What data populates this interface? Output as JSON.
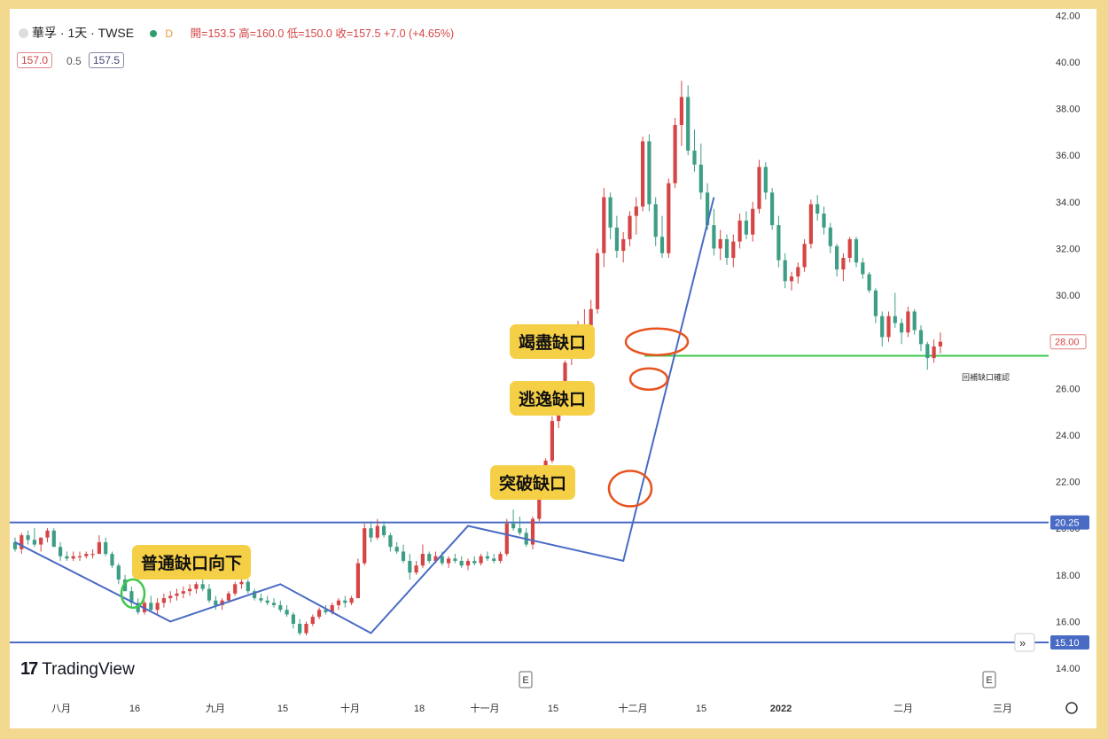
{
  "header": {
    "symbol": "華孚 · 1天 · TWSE",
    "interval_badge": "D",
    "ohlc_text": "開=153.5 高=160.0 低=150.0 收=157.5 +7.0 (+4.65%)",
    "bid": "157.0",
    "spread": "0.5",
    "ask": "157.5"
  },
  "branding": {
    "logo_text": "TradingView",
    "logo_mark": "17"
  },
  "annotations": [
    {
      "text": "普通缺口向下",
      "ring_color": "#3cc84a"
    },
    {
      "text": "突破缺口",
      "ring_color": "#e8531f"
    },
    {
      "text": "逃逸缺口",
      "ring_color": "#e8531f"
    },
    {
      "text": "竭盡缺口",
      "ring_color": "#e8531f"
    }
  ],
  "gap_fill_label": "回補缺口確認",
  "event_marker": "E",
  "scroll_icon": "double-chevron-right-icon",
  "colors": {
    "up": "#d64545",
    "down": "#3e9e85",
    "trend": "#4a6bc4",
    "support": "#4a6bc4",
    "gapline": "#3cc84a"
  },
  "chart_data": {
    "type": "candlestick",
    "x_tick_labels": [
      "八月",
      "16",
      "九月",
      "15",
      "十月",
      "18",
      "十一月",
      "15",
      "十二月",
      "15",
      "2022",
      "二月",
      "三月"
    ],
    "y_tick_labels": [
      "14.00",
      "16.00",
      "18.00",
      "20.00",
      "22.00",
      "24.00",
      "26.00",
      "28.00",
      "30.00",
      "32.00",
      "34.00",
      "36.00",
      "38.00",
      "40.00",
      "42.00"
    ],
    "ylim": [
      14,
      42
    ],
    "price_labels": [
      {
        "text": "28.00",
        "value": 28.0,
        "style": "last"
      },
      {
        "text": "20.25",
        "value": 20.25,
        "style": "level"
      },
      {
        "text": "15.10",
        "value": 15.1,
        "style": "level"
      }
    ],
    "horizontal_levels": [
      20.25,
      15.1,
      27.4
    ],
    "series": [
      {
        "values": [
          [
            19.4,
            19.6,
            19.0,
            19.1
          ],
          [
            19.1,
            19.8,
            18.9,
            19.7
          ],
          [
            19.7,
            19.9,
            19.3,
            19.5
          ],
          [
            19.5,
            20.0,
            19.2,
            19.3
          ],
          [
            19.3,
            19.6,
            19.0,
            19.6
          ],
          [
            19.6,
            20.0,
            19.4,
            19.9
          ],
          [
            19.9,
            20.0,
            19.5,
            19.2
          ],
          [
            19.2,
            19.4,
            18.6,
            18.8
          ],
          [
            18.8,
            19.0,
            18.6,
            18.7
          ],
          [
            18.7,
            19.0,
            18.6,
            18.8
          ],
          [
            18.8,
            19.0,
            18.6,
            18.8
          ],
          [
            18.8,
            19.0,
            18.7,
            18.9
          ],
          [
            18.9,
            19.1,
            18.7,
            18.9
          ],
          [
            18.9,
            19.7,
            18.9,
            19.4
          ],
          [
            19.4,
            19.6,
            18.8,
            18.9
          ],
          [
            18.9,
            19.0,
            18.3,
            18.4
          ],
          [
            18.4,
            18.5,
            17.6,
            17.8
          ],
          [
            17.8,
            18.0,
            17.3,
            17.3
          ],
          [
            17.3,
            17.5,
            16.6,
            16.8
          ],
          [
            16.8,
            17.0,
            16.3,
            16.4
          ],
          [
            16.4,
            16.9,
            16.3,
            16.8
          ],
          [
            16.8,
            17.1,
            16.4,
            16.5
          ],
          [
            16.5,
            17.0,
            16.3,
            16.8
          ],
          [
            16.8,
            17.2,
            16.6,
            17.0
          ],
          [
            17.0,
            17.3,
            16.8,
            17.1
          ],
          [
            17.1,
            17.4,
            16.9,
            17.2
          ],
          [
            17.2,
            17.5,
            17.0,
            17.3
          ],
          [
            17.3,
            17.6,
            17.1,
            17.4
          ],
          [
            17.4,
            17.7,
            17.2,
            17.6
          ],
          [
            17.6,
            17.9,
            17.3,
            17.4
          ],
          [
            17.4,
            17.6,
            16.8,
            16.9
          ],
          [
            16.9,
            17.1,
            16.5,
            16.7
          ],
          [
            16.7,
            17.0,
            16.5,
            16.9
          ],
          [
            16.9,
            17.3,
            16.8,
            17.2
          ],
          [
            17.2,
            17.7,
            17.1,
            17.6
          ],
          [
            17.6,
            17.9,
            17.4,
            17.7
          ],
          [
            17.7,
            17.8,
            17.2,
            17.3
          ],
          [
            17.3,
            17.4,
            16.9,
            17.0
          ],
          [
            17.0,
            17.2,
            16.8,
            16.9
          ],
          [
            16.9,
            17.1,
            16.7,
            16.8
          ],
          [
            16.8,
            17.0,
            16.6,
            16.7
          ],
          [
            16.7,
            16.9,
            16.4,
            16.5
          ],
          [
            16.5,
            16.7,
            16.2,
            16.3
          ],
          [
            16.3,
            16.4,
            15.7,
            15.9
          ],
          [
            15.9,
            16.1,
            15.4,
            15.5
          ],
          [
            15.5,
            16.0,
            15.4,
            15.9
          ],
          [
            15.9,
            16.3,
            15.8,
            16.2
          ],
          [
            16.2,
            16.6,
            16.1,
            16.5
          ],
          [
            16.5,
            16.7,
            16.3,
            16.4
          ],
          [
            16.4,
            16.8,
            16.3,
            16.7
          ],
          [
            16.7,
            17.0,
            16.5,
            16.9
          ],
          [
            16.9,
            17.1,
            16.6,
            16.8
          ],
          [
            16.8,
            17.1,
            16.7,
            17.0
          ],
          [
            17.0,
            18.7,
            17.0,
            18.5
          ],
          [
            18.5,
            20.2,
            18.4,
            20.0
          ],
          [
            20.0,
            20.3,
            19.4,
            19.6
          ],
          [
            19.6,
            20.4,
            19.5,
            20.1
          ],
          [
            20.1,
            20.3,
            19.6,
            19.7
          ],
          [
            19.7,
            19.8,
            19.0,
            19.2
          ],
          [
            19.2,
            19.4,
            18.9,
            19.0
          ],
          [
            19.0,
            19.3,
            18.5,
            18.6
          ],
          [
            18.6,
            18.9,
            17.8,
            18.1
          ],
          [
            18.1,
            18.6,
            18.0,
            18.4
          ],
          [
            18.4,
            19.3,
            18.3,
            18.9
          ],
          [
            18.9,
            19.0,
            18.5,
            18.6
          ],
          [
            18.6,
            19.0,
            18.5,
            18.8
          ],
          [
            18.8,
            19.0,
            18.4,
            18.5
          ],
          [
            18.5,
            18.8,
            18.3,
            18.7
          ],
          [
            18.7,
            18.9,
            18.5,
            18.6
          ],
          [
            18.6,
            18.8,
            18.3,
            18.4
          ],
          [
            18.4,
            18.7,
            18.2,
            18.6
          ],
          [
            18.6,
            18.8,
            18.4,
            18.5
          ],
          [
            18.5,
            18.9,
            18.4,
            18.8
          ],
          [
            18.8,
            19.0,
            18.6,
            18.7
          ],
          [
            18.7,
            18.9,
            18.5,
            18.6
          ],
          [
            18.6,
            19.0,
            18.5,
            18.9
          ],
          [
            18.9,
            20.4,
            18.8,
            20.2
          ],
          [
            20.2,
            20.8,
            19.9,
            20.0
          ],
          [
            20.0,
            20.5,
            19.7,
            19.8
          ],
          [
            19.8,
            20.0,
            19.2,
            19.3
          ],
          [
            19.3,
            20.5,
            19.1,
            20.4
          ],
          [
            20.4,
            21.6,
            20.3,
            21.5
          ],
          [
            21.5,
            23.0,
            21.5,
            22.9
          ],
          [
            22.9,
            24.8,
            22.8,
            24.6
          ],
          [
            24.6,
            26.2,
            24.3,
            26.0
          ],
          [
            26.0,
            27.2,
            25.8,
            27.1
          ],
          [
            27.4,
            28.6,
            27.0,
            28.3
          ],
          [
            28.3,
            28.9,
            27.6,
            28.6
          ],
          [
            28.6,
            29.4,
            28.1,
            28.7
          ],
          [
            28.7,
            29.8,
            28.3,
            29.4
          ],
          [
            29.4,
            32.0,
            29.2,
            31.8
          ],
          [
            31.8,
            34.6,
            31.2,
            34.2
          ],
          [
            34.2,
            34.4,
            32.4,
            32.9
          ],
          [
            32.9,
            33.4,
            31.6,
            31.9
          ],
          [
            31.9,
            32.7,
            31.4,
            32.4
          ],
          [
            32.4,
            33.6,
            32.1,
            33.4
          ],
          [
            33.4,
            34.2,
            32.6,
            33.8
          ],
          [
            33.8,
            36.8,
            33.6,
            36.6
          ],
          [
            36.6,
            36.9,
            33.6,
            33.9
          ],
          [
            33.9,
            34.2,
            32.1,
            32.5
          ],
          [
            32.5,
            33.4,
            31.6,
            31.8
          ],
          [
            31.8,
            35.0,
            31.6,
            34.8
          ],
          [
            34.8,
            37.6,
            34.6,
            37.3
          ],
          [
            37.3,
            39.2,
            36.4,
            38.5
          ],
          [
            38.5,
            39.0,
            36.0,
            36.2
          ],
          [
            36.2,
            37.1,
            35.3,
            35.6
          ],
          [
            35.6,
            36.5,
            34.1,
            34.4
          ],
          [
            34.4,
            34.8,
            32.8,
            33.0
          ],
          [
            33.0,
            33.7,
            31.7,
            32.0
          ],
          [
            32.0,
            32.8,
            31.5,
            32.4
          ],
          [
            32.4,
            32.6,
            31.3,
            31.6
          ],
          [
            31.6,
            32.6,
            31.2,
            32.3
          ],
          [
            32.3,
            33.5,
            32.0,
            33.2
          ],
          [
            33.2,
            33.6,
            32.4,
            32.6
          ],
          [
            32.6,
            34.0,
            32.3,
            33.7
          ],
          [
            33.7,
            35.8,
            33.5,
            35.5
          ],
          [
            35.5,
            35.7,
            34.1,
            34.4
          ],
          [
            34.4,
            34.6,
            32.8,
            33.0
          ],
          [
            33.0,
            33.4,
            31.2,
            31.5
          ],
          [
            31.5,
            31.8,
            30.3,
            30.6
          ],
          [
            30.6,
            31.0,
            30.2,
            30.8
          ],
          [
            30.8,
            31.4,
            30.5,
            31.2
          ],
          [
            31.2,
            32.4,
            31.0,
            32.2
          ],
          [
            32.2,
            34.1,
            32.0,
            33.9
          ],
          [
            33.9,
            34.3,
            33.2,
            33.5
          ],
          [
            33.5,
            33.8,
            32.6,
            32.9
          ],
          [
            32.9,
            33.1,
            31.8,
            32.1
          ],
          [
            32.1,
            32.2,
            30.8,
            31.1
          ],
          [
            31.1,
            31.8,
            30.6,
            31.6
          ],
          [
            31.6,
            32.5,
            31.4,
            32.4
          ],
          [
            32.4,
            32.5,
            31.2,
            31.4
          ],
          [
            31.4,
            31.6,
            30.7,
            30.9
          ],
          [
            30.9,
            31.0,
            30.1,
            30.2
          ],
          [
            30.2,
            30.3,
            28.8,
            29.1
          ],
          [
            29.1,
            29.3,
            27.8,
            28.2
          ],
          [
            28.2,
            29.3,
            28.0,
            29.1
          ],
          [
            29.1,
            30.1,
            28.6,
            28.8
          ],
          [
            28.8,
            29.0,
            27.9,
            28.4
          ],
          [
            28.4,
            29.5,
            28.2,
            29.3
          ],
          [
            29.3,
            29.4,
            28.3,
            28.5
          ],
          [
            28.5,
            28.7,
            27.6,
            27.9
          ],
          [
            27.9,
            28.0,
            26.8,
            27.3
          ],
          [
            27.3,
            28.1,
            27.1,
            27.8
          ],
          [
            27.8,
            28.4,
            27.5,
            28.0
          ]
        ]
      }
    ]
  }
}
